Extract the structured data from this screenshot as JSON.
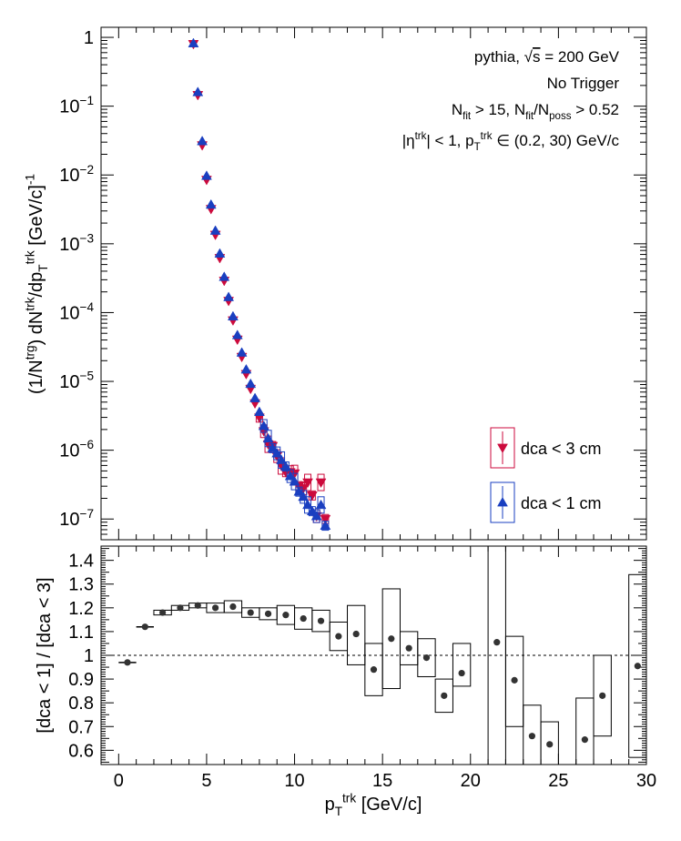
{
  "chart_data": [
    {
      "type": "scatter",
      "panel": "top",
      "log_y": true,
      "xlim": [
        -1,
        30
      ],
      "ylim": [
        5e-08,
        1.4
      ],
      "ylabel_parts": {
        "a": "(1/N",
        "a_sup": "trg",
        "b": ") dN",
        "b_sup": "trk",
        "c": "/dp",
        "c_sub": "T",
        "c_sup": "trk",
        "d": " [GeV/c]",
        "d_sup": "-1"
      },
      "yticks": [
        {
          "v": 1,
          "base": "1",
          "exp": ""
        },
        {
          "v": 0.1,
          "base": "10",
          "exp": "−1"
        },
        {
          "v": 0.01,
          "base": "10",
          "exp": "−2"
        },
        {
          "v": 0.001,
          "base": "10",
          "exp": "−3"
        },
        {
          "v": 0.0001,
          "base": "10",
          "exp": "−4"
        },
        {
          "v": 1e-05,
          "base": "10",
          "exp": "−5"
        },
        {
          "v": 1e-06,
          "base": "10",
          "exp": "−6"
        },
        {
          "v": 1e-07,
          "base": "10",
          "exp": "−7"
        }
      ],
      "annotations": {
        "line1": {
          "text": "pythia,",
          "sqrt_s": "s",
          "rest": " = 200 GeV"
        },
        "line2": "No Trigger",
        "line3": {
          "n1": "N",
          "n1_sub": "fit",
          "t1": " > 15, N",
          "t1_sub": "fit",
          "t2": "/N",
          "t2_sub": "poss",
          "t3": " > 0.52"
        },
        "line4": {
          "eta": "|η",
          "eta_sup": "trk",
          "t1": "| < 1, p",
          "t1_sub": "T",
          "t1_sup": "trk",
          "t2": " ∈ (0.2, 30) GeV/c"
        }
      },
      "series": [
        {
          "name": "dca < 3 cm",
          "color": "#cc0a3c",
          "marker": "triangle-down",
          "x": [
            4.25,
            4.5,
            4.75,
            5.0,
            5.25,
            5.5,
            5.75,
            6.0,
            6.25,
            6.5,
            6.75,
            7.0,
            7.25,
            7.5,
            7.75,
            8.0,
            8.25,
            8.5,
            8.75,
            9.0,
            9.25,
            9.5,
            9.75,
            10.0,
            10.25,
            10.5,
            10.75,
            11.0,
            11.25,
            11.5,
            11.75
          ],
          "y": [
            0.8,
            0.145,
            0.027,
            0.0085,
            0.0032,
            0.00135,
            0.00062,
            0.00029,
            0.000148,
            7.7e-05,
            4.05e-05,
            2.27e-05,
            1.28e-05,
            7.8e-06,
            4.8e-06,
            2.98e-06,
            1.89e-06,
            1.22e-06,
            1.15e-06,
            8.2e-07,
            5.9e-07,
            4.8e-07,
            4.8e-07,
            4.6e-07,
            3e-07,
            2.8e-07,
            3.4e-07,
            2.2e-07,
            1.1e-07,
            3.4e-07,
            1e-07
          ]
        },
        {
          "name": "dca < 1 cm",
          "color": "#1a3fc0",
          "marker": "triangle-up",
          "x": [
            4.25,
            4.5,
            4.75,
            5.0,
            5.25,
            5.5,
            5.75,
            6.0,
            6.25,
            6.5,
            6.75,
            7.0,
            7.25,
            7.5,
            7.75,
            8.0,
            8.25,
            8.5,
            8.75,
            9.0,
            9.25,
            9.5,
            9.75,
            10.0,
            10.25,
            10.5,
            10.75,
            11.0,
            11.25,
            11.5,
            11.75
          ],
          "y": [
            0.82,
            0.16,
            0.031,
            0.0097,
            0.0037,
            0.00155,
            0.00072,
            0.00033,
            0.000168,
            8.8e-05,
            4.7e-05,
            2.62e-05,
            1.49e-05,
            9.2e-06,
            5.7e-06,
            3.6e-06,
            2.25e-06,
            1.48e-06,
            1.07e-06,
            9e-07,
            7.2e-07,
            5.8e-07,
            4.2e-07,
            3.5e-07,
            2.5e-07,
            2.1e-07,
            1.6e-07,
            1.3e-07,
            1.1e-07,
            1.6e-07,
            8e-08
          ]
        }
      ]
    },
    {
      "type": "scatter",
      "panel": "bottom",
      "xlim": [
        -1,
        30
      ],
      "ylim": [
        0.54,
        1.46
      ],
      "xlabel_parts": {
        "a": "p",
        "a_sub": "T",
        "a_sup": "trk",
        "b": " [GeV/c]"
      },
      "ylabel": "[dca < 1] / [dca < 3]",
      "xticks": [
        0,
        5,
        10,
        15,
        20,
        25,
        30
      ],
      "yticks": [
        0.6,
        0.7,
        0.8,
        0.9,
        1,
        1.1,
        1.2,
        1.3,
        1.4
      ],
      "reference_line": 1,
      "series": [
        {
          "name": "ratio",
          "color": "#333333",
          "x": [
            0.5,
            1.5,
            2.5,
            3.5,
            4.5,
            5.5,
            6.5,
            7.5,
            8.5,
            9.5,
            10.5,
            11.5,
            12.5,
            13.5,
            14.5,
            15.5,
            16.5,
            17.5,
            18.5,
            19.5,
            21.5,
            22.5,
            23.5,
            24.5,
            26.5,
            27.5,
            29.5
          ],
          "y": [
            0.97,
            1.12,
            1.18,
            1.2,
            1.21,
            1.2,
            1.205,
            1.18,
            1.175,
            1.17,
            1.155,
            1.145,
            1.08,
            1.09,
            0.94,
            1.07,
            1.03,
            0.99,
            0.83,
            0.925,
            1.055,
            0.895,
            0.66,
            0.625,
            0.645,
            0.83,
            0.955
          ],
          "x_err": [
            0.5,
            0.5,
            0,
            0,
            0,
            0,
            0,
            0,
            0,
            0,
            0,
            0,
            0,
            0,
            0,
            0,
            0,
            0,
            0,
            0,
            0,
            0,
            0,
            0,
            0,
            0,
            0
          ],
          "box_lo": [
            null,
            null,
            1.17,
            1.19,
            1.2,
            1.18,
            1.18,
            1.16,
            1.15,
            1.13,
            1.11,
            1.1,
            1.02,
            0.96,
            0.83,
            0.86,
            0.96,
            0.91,
            0.76,
            0.87,
            0.54,
            0.7,
            0.54,
            0.54,
            0.54,
            0.66,
            0.57
          ],
          "box_hi": [
            null,
            null,
            1.19,
            1.21,
            1.22,
            1.22,
            1.23,
            1.2,
            1.2,
            1.21,
            1.2,
            1.19,
            1.14,
            1.21,
            1.05,
            1.28,
            1.1,
            1.07,
            0.9,
            1.05,
            1.46,
            1.08,
            0.79,
            0.72,
            0.82,
            1.0,
            1.34
          ]
        }
      ]
    }
  ]
}
